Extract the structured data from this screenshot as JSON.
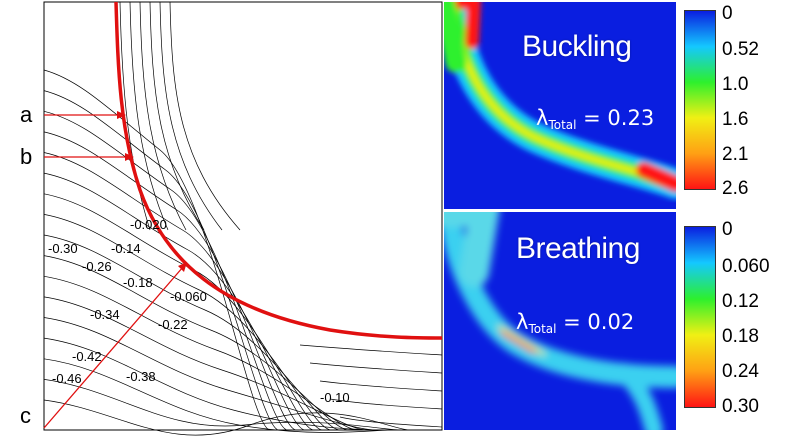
{
  "contour_panel": {
    "point_labels": [
      "a",
      "b",
      "c"
    ],
    "contour_labels": [
      "-0.020",
      "-0.30",
      "-0.14",
      "-0.26",
      "-0.18",
      "-0.060",
      "-0.34",
      "-0.22",
      "-0.42",
      "-0.46",
      "-0.38",
      "-0.10"
    ]
  },
  "maps": [
    {
      "title": "Buckling",
      "lambda_symbol": "λ",
      "lambda_subscript": "Total",
      "lambda_value": "= 0.23",
      "colorbar_ticks": [
        "0",
        "0.52",
        "1.0",
        "1.6",
        "2.1",
        "2.6"
      ],
      "colorbar_colors": [
        "#0a1ee0",
        "#14c8ff",
        "#2df02d",
        "#f0f014",
        "#ffa014",
        "#ff1414"
      ]
    },
    {
      "title": "Breathing",
      "lambda_symbol": "λ",
      "lambda_subscript": "Total",
      "lambda_value": "= 0.02",
      "colorbar_ticks": [
        "0",
        "0.060",
        "0.12",
        "0.18",
        "0.24",
        "0.30"
      ],
      "colorbar_colors": [
        "#0a1ee0",
        "#14c8ff",
        "#2df02d",
        "#f0f014",
        "#ffa014",
        "#ff1414"
      ]
    }
  ],
  "colors": {
    "boundary": "#e01010",
    "contour": "#000000",
    "map_bg": "#0a1ee0"
  }
}
